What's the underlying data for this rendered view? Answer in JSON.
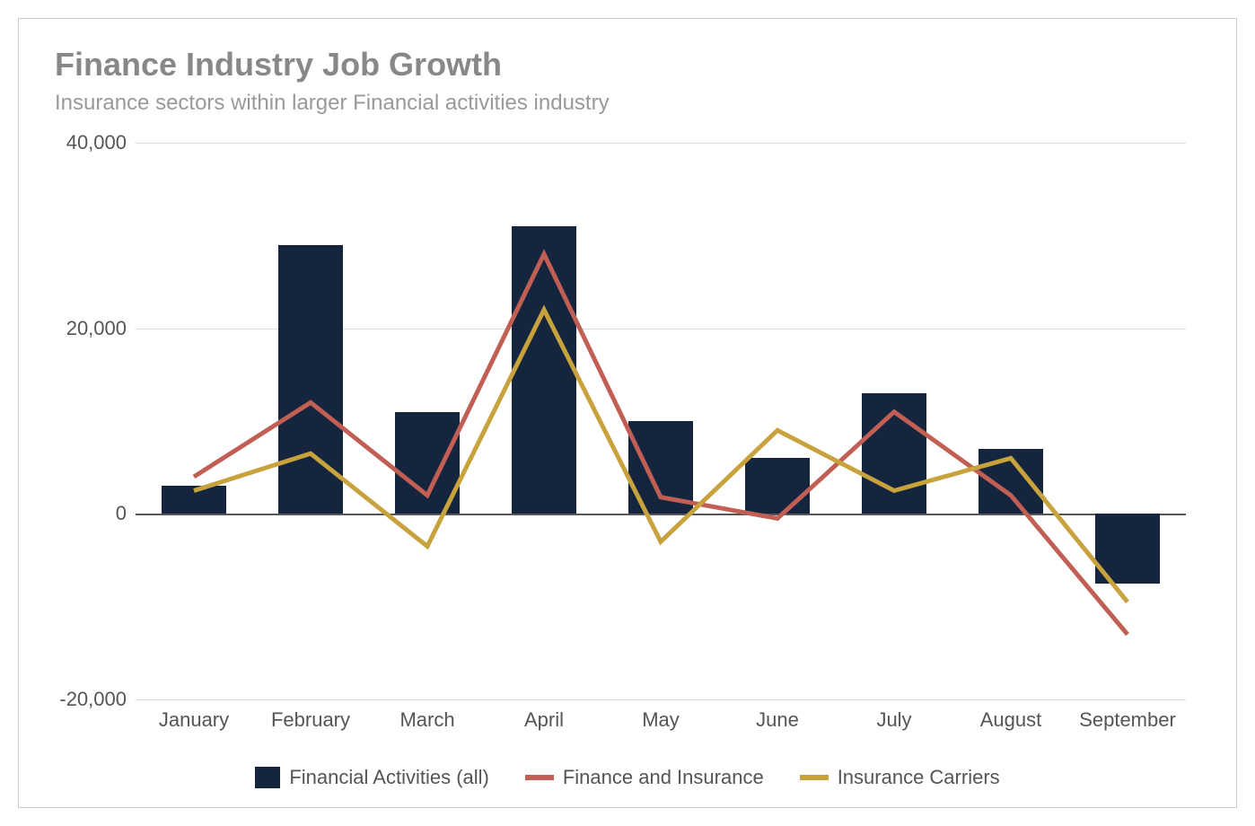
{
  "chart": {
    "type": "bar_with_lines",
    "title": "Finance Industry Job Growth",
    "subtitle": "Insurance sectors within larger Financial activities industry",
    "title_fontsize": 36,
    "subtitle_fontsize": 24,
    "title_color": "#888888",
    "subtitle_color": "#999999",
    "background_color": "#ffffff",
    "border_color": "#cccccc",
    "grid_color": "#dddddd",
    "zero_line_color": "#555555",
    "label_color": "#555555",
    "label_fontsize": 22,
    "categories": [
      "January",
      "February",
      "March",
      "April",
      "May",
      "June",
      "July",
      "August",
      "September"
    ],
    "ylim": [
      -20000,
      40000
    ],
    "ytick_step": 20000,
    "ytick_labels": [
      "-20,000",
      "0",
      "20,000",
      "40,000"
    ],
    "bar_width_ratio": 0.55,
    "series": [
      {
        "name": "Financial Activities (all)",
        "type": "bar",
        "color": "#14253d",
        "values": [
          3000,
          29000,
          11000,
          31000,
          10000,
          6000,
          13000,
          7000,
          -7500
        ]
      },
      {
        "name": "Finance and Insurance",
        "type": "line",
        "color": "#c15f55",
        "line_width": 5,
        "values": [
          4000,
          12000,
          2000,
          28000,
          1800,
          -500,
          11000,
          2000,
          -13000
        ]
      },
      {
        "name": "Insurance Carriers",
        "type": "line",
        "color": "#c8a23d",
        "line_width": 5,
        "values": [
          2500,
          6500,
          -3500,
          22000,
          -3000,
          9000,
          2500,
          6000,
          -9500
        ]
      }
    ],
    "legend": {
      "position": "bottom",
      "fontsize": 22
    }
  }
}
